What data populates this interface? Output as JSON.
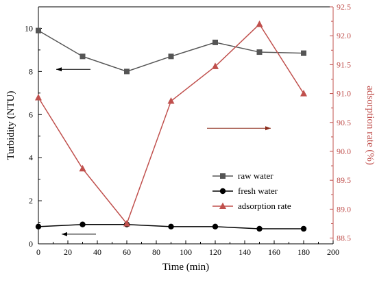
{
  "chart_data": {
    "type": "line",
    "xlabel": "Time (min)",
    "ylabel_left": "Turbidity (NTU)",
    "ylabel_right": "adsorption rate (%)",
    "xlim": [
      0,
      200
    ],
    "ylim_left": [
      0,
      11
    ],
    "ylim_right": [
      88.4,
      92.5
    ],
    "x_ticks": [
      0,
      20,
      40,
      60,
      80,
      100,
      120,
      140,
      160,
      180,
      200
    ],
    "y_ticks_left": [
      0,
      2,
      4,
      6,
      8,
      10
    ],
    "y_ticks_right": [
      88.5,
      89.0,
      89.5,
      90.0,
      90.5,
      91.0,
      91.5,
      92.0,
      92.5
    ],
    "grid": false,
    "legend_position": "lower-right",
    "x": [
      0,
      30,
      60,
      90,
      120,
      150,
      180
    ],
    "series": [
      {
        "name": "raw water",
        "axis": "left",
        "marker": "square",
        "color": "#555555",
        "values": [
          9.9,
          8.7,
          8.0,
          8.7,
          9.35,
          8.9,
          8.85
        ]
      },
      {
        "name": "fresh water",
        "axis": "left",
        "marker": "circle",
        "color": "#000000",
        "values": [
          0.8,
          0.9,
          0.9,
          0.8,
          0.8,
          0.7,
          0.7
        ]
      },
      {
        "name": "adsorption rate",
        "axis": "right",
        "marker": "triangle",
        "color": "#c0504d",
        "values": [
          90.93,
          89.7,
          88.75,
          90.87,
          91.47,
          92.2,
          91.0
        ]
      }
    ],
    "annotations": [
      {
        "type": "arrow",
        "direction": "left",
        "axis": "left",
        "color": "#000000"
      },
      {
        "type": "arrow",
        "direction": "left",
        "axis": "left",
        "color": "#000000"
      },
      {
        "type": "arrow",
        "direction": "right",
        "axis": "right",
        "color": "#8b2a1a"
      }
    ]
  }
}
